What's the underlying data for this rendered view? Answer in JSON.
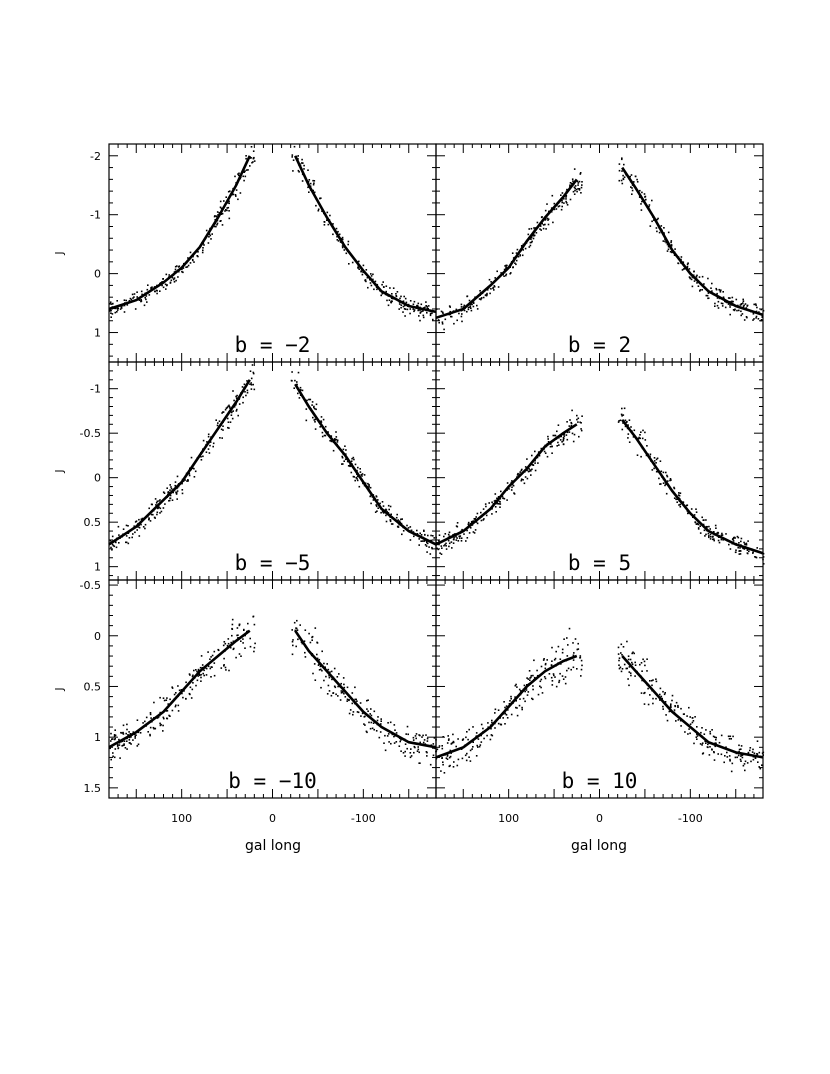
{
  "chart_data": {
    "type": "scatter",
    "layout": "3x2 panel grid",
    "xlabel": "gal long",
    "ylabel": "J",
    "x_ticks": [
      "100",
      "0",
      "-100"
    ],
    "xlim": [
      180,
      -180
    ],
    "y_axis_inverted": true,
    "rows": [
      {
        "ylim": [
          1.5,
          -2.2
        ],
        "ticks": [
          "-2",
          "-1",
          "0",
          "1"
        ]
      },
      {
        "ylim": [
          1.15,
          -1.3
        ],
        "ticks": [
          "-1",
          "-0.5",
          "0",
          "0.5",
          "1"
        ]
      },
      {
        "ylim": [
          1.6,
          -0.55
        ],
        "ticks": [
          "-0.5",
          "0",
          "0.5",
          "1",
          "1.5"
        ]
      }
    ],
    "panels": [
      {
        "label": "b = −2",
        "b": -2,
        "model_curve": {
          "x": [
            180,
            150,
            120,
            100,
            80,
            60,
            40,
            25,
            -25,
            -40,
            -60,
            -80,
            -100,
            -120,
            -150,
            -180
          ],
          "y": [
            0.6,
            0.45,
            0.15,
            -0.1,
            -0.45,
            -0.95,
            -1.5,
            -2.0,
            -2.0,
            -1.5,
            -0.95,
            -0.45,
            -0.05,
            0.3,
            0.55,
            0.65
          ]
        }
      },
      {
        "label": "b = 2",
        "b": 2,
        "model_curve": {
          "x": [
            180,
            150,
            120,
            100,
            80,
            60,
            40,
            25,
            -25,
            -40,
            -60,
            -80,
            -100,
            -120,
            -150,
            -180
          ],
          "y": [
            0.75,
            0.6,
            0.2,
            -0.1,
            -0.55,
            -0.95,
            -1.3,
            -1.6,
            -1.8,
            -1.45,
            -0.95,
            -0.4,
            0.0,
            0.3,
            0.55,
            0.7
          ]
        }
      },
      {
        "label": "b = −5",
        "b": -5,
        "model_curve": {
          "x": [
            180,
            150,
            120,
            100,
            80,
            60,
            40,
            25,
            -25,
            -40,
            -60,
            -80,
            -100,
            -120,
            -150,
            -180
          ],
          "y": [
            0.75,
            0.55,
            0.25,
            0.05,
            -0.25,
            -0.55,
            -0.85,
            -1.1,
            -1.05,
            -0.8,
            -0.5,
            -0.25,
            0.05,
            0.35,
            0.6,
            0.75
          ]
        }
      },
      {
        "label": "b = 5",
        "b": 5,
        "model_curve": {
          "x": [
            180,
            150,
            120,
            100,
            80,
            60,
            40,
            25,
            -25,
            -40,
            -60,
            -80,
            -100,
            -120,
            -150,
            -180
          ],
          "y": [
            0.75,
            0.6,
            0.35,
            0.1,
            -0.1,
            -0.35,
            -0.5,
            -0.6,
            -0.65,
            -0.45,
            -0.15,
            0.15,
            0.4,
            0.6,
            0.75,
            0.85
          ]
        }
      },
      {
        "label": "b = −10",
        "b": -10,
        "model_curve": {
          "x": [
            180,
            150,
            120,
            100,
            80,
            60,
            40,
            25,
            -25,
            -40,
            -60,
            -80,
            -100,
            -120,
            -150,
            -180
          ],
          "y": [
            1.1,
            0.95,
            0.75,
            0.55,
            0.35,
            0.2,
            0.05,
            -0.05,
            -0.05,
            0.15,
            0.35,
            0.55,
            0.75,
            0.9,
            1.05,
            1.1
          ]
        }
      },
      {
        "label": "b = 10",
        "b": 10,
        "model_curve": {
          "x": [
            180,
            150,
            120,
            100,
            80,
            60,
            40,
            25,
            -25,
            -40,
            -60,
            -80,
            -100,
            -120,
            -150,
            -180
          ],
          "y": [
            1.2,
            1.1,
            0.9,
            0.7,
            0.5,
            0.35,
            0.25,
            0.2,
            0.2,
            0.35,
            0.55,
            0.75,
            0.9,
            1.05,
            1.15,
            1.2
          ]
        }
      }
    ]
  }
}
